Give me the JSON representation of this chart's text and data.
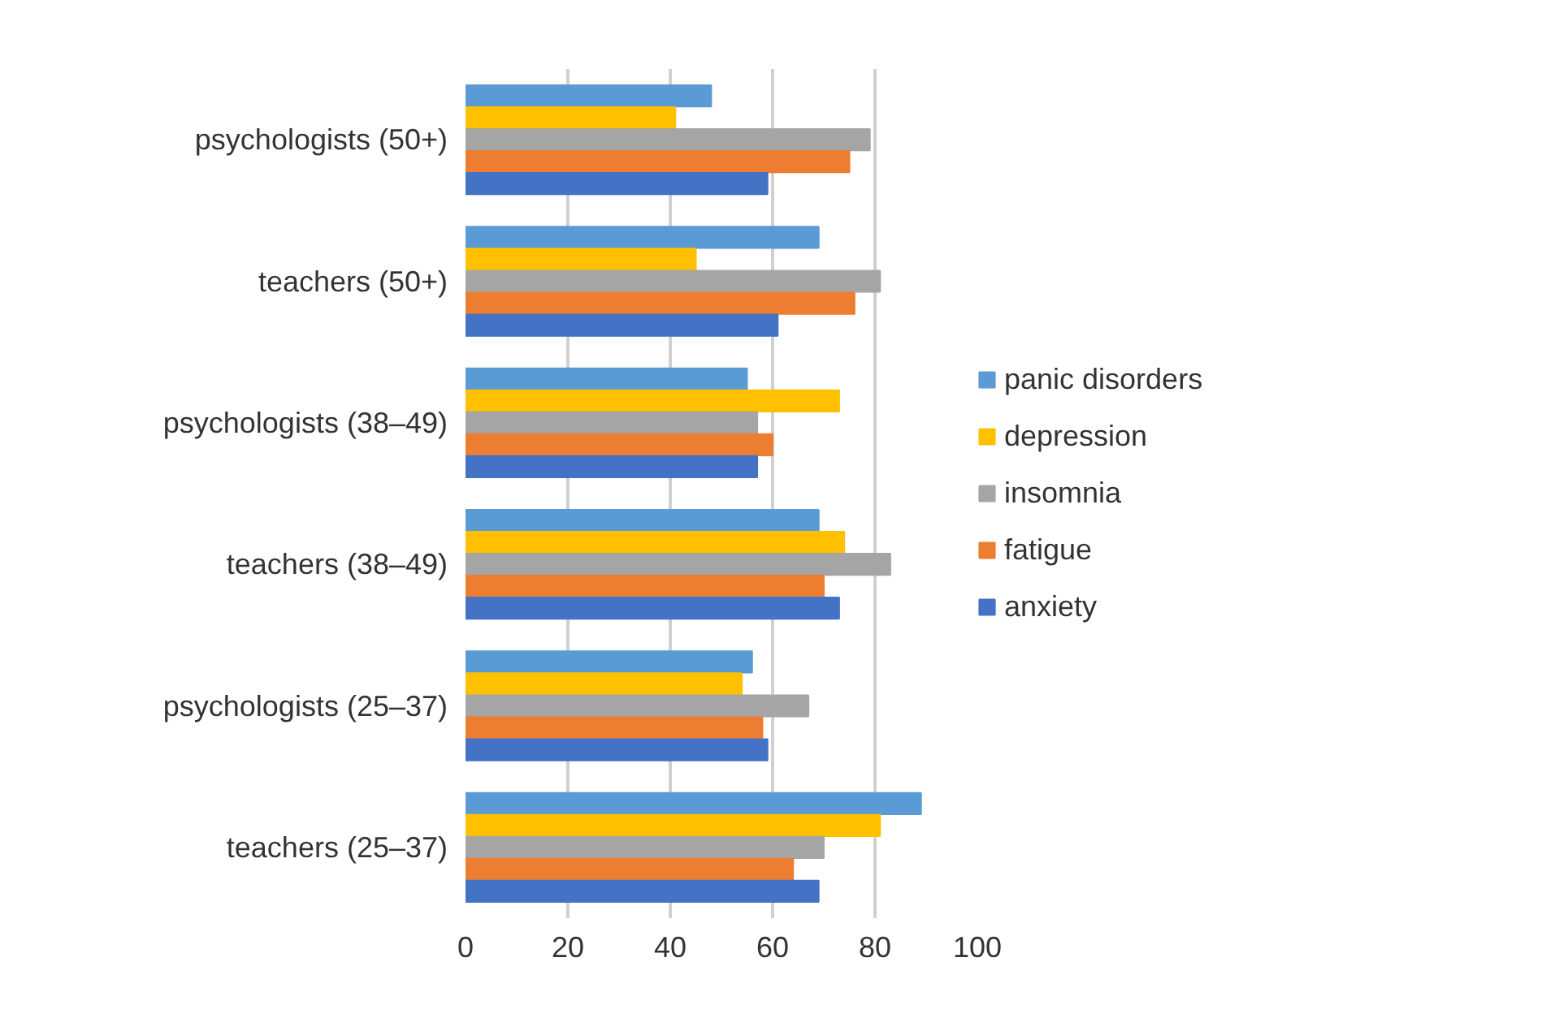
{
  "chart_data": {
    "type": "bar",
    "orientation": "horizontal",
    "categories": [
      "psychologists (50+)",
      "teachers (50+)",
      "psychologists (38–49)",
      "teachers (38–49)",
      "psychologists (25–37)",
      "teachers (25–37)"
    ],
    "series": [
      {
        "name": "panic disorders",
        "color": "#5b9bd5",
        "values": [
          48,
          69,
          55,
          69,
          56,
          89
        ]
      },
      {
        "name": "depression",
        "color": "#ffc000",
        "values": [
          41,
          45,
          73,
          74,
          54,
          81
        ]
      },
      {
        "name": "insomnia",
        "color": "#a5a5a5",
        "values": [
          79,
          81,
          57,
          83,
          67,
          70
        ]
      },
      {
        "name": "fatigue",
        "color": "#ed7d31",
        "values": [
          75,
          76,
          60,
          70,
          58,
          64
        ]
      },
      {
        "name": "anxiety",
        "color": "#4472c4",
        "values": [
          59,
          61,
          57,
          73,
          59,
          69
        ]
      }
    ],
    "xlim": [
      0,
      100
    ],
    "xticks": [
      0,
      20,
      40,
      60,
      80,
      100
    ],
    "grid": "x",
    "legend": "right"
  }
}
